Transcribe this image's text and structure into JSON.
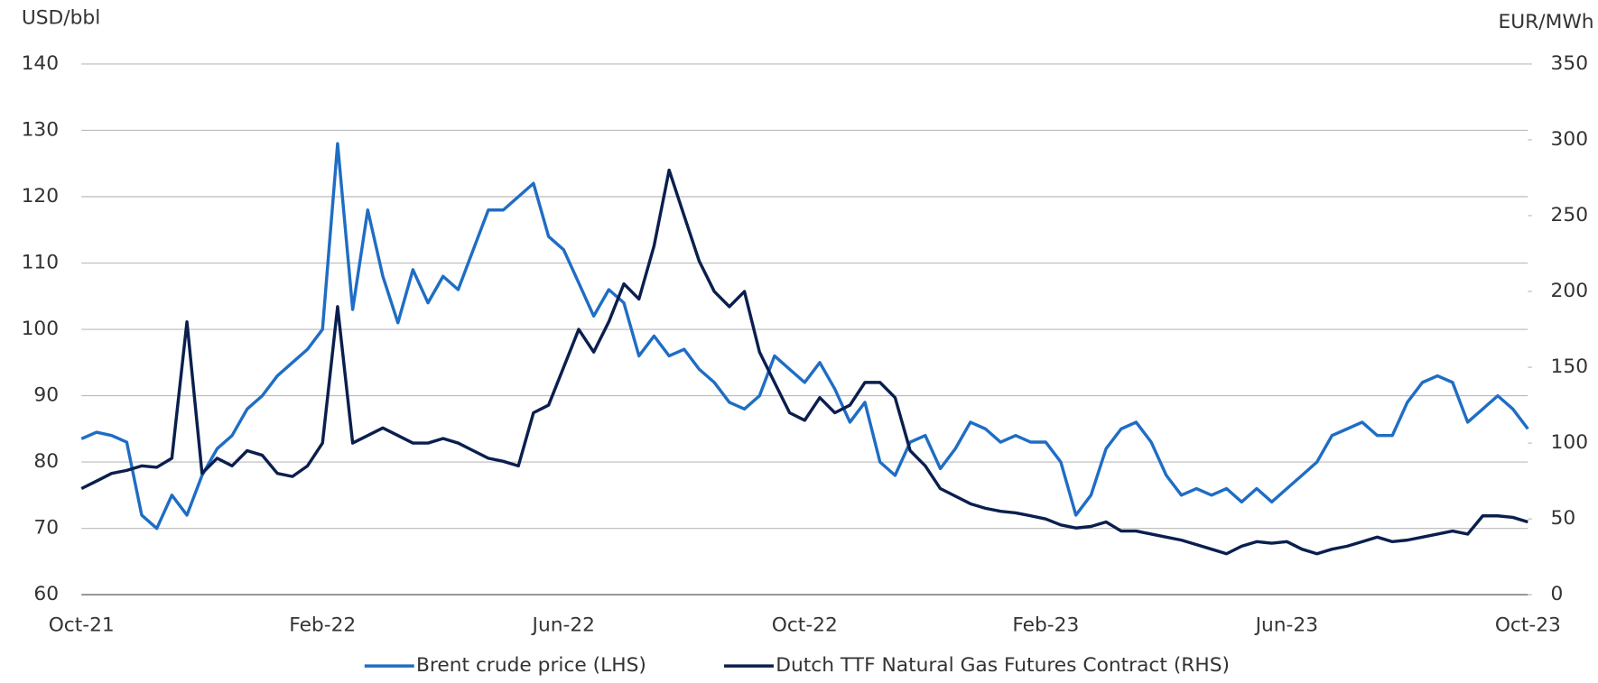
{
  "chart_data": {
    "type": "line",
    "y_label": "USD/bbl",
    "y2_label": "EUR/MWh",
    "categories": [
      "Oct-21",
      null,
      null,
      null,
      null,
      null,
      null,
      null,
      null,
      null,
      null,
      null,
      null,
      null,
      null,
      null,
      "Feb-22",
      null,
      null,
      null,
      null,
      null,
      null,
      null,
      null,
      null,
      null,
      null,
      null,
      null,
      null,
      null,
      "Jun-22",
      null,
      null,
      null,
      null,
      null,
      null,
      null,
      null,
      null,
      null,
      null,
      null,
      null,
      null,
      null,
      "Oct-22",
      null,
      null,
      null,
      null,
      null,
      null,
      null,
      null,
      null,
      null,
      null,
      null,
      null,
      null,
      null,
      "Feb-23",
      null,
      null,
      null,
      null,
      null,
      null,
      null,
      null,
      null,
      null,
      null,
      null,
      null,
      null,
      null,
      "Jun-23",
      null,
      null,
      null,
      null,
      null,
      null,
      null,
      null,
      null,
      null,
      null,
      null,
      null,
      null,
      null,
      "Oct-23"
    ],
    "series": [
      {
        "name": "Brent crude price (LHS)",
        "color": "#1f6dc4",
        "axis": "y",
        "values": [
          83.5,
          84.5,
          84,
          83,
          72,
          70,
          75,
          72,
          78,
          82,
          84,
          88,
          90,
          93,
          95,
          97,
          100,
          128,
          103,
          118,
          108,
          101,
          109,
          104,
          108,
          106,
          112,
          118,
          118,
          120,
          122,
          114,
          112,
          107,
          102,
          106,
          104,
          96,
          99,
          96,
          97,
          94,
          92,
          89,
          88,
          90,
          96,
          94,
          92,
          95,
          91,
          86,
          89,
          80,
          78,
          83,
          84,
          79,
          82,
          86,
          85,
          83,
          84,
          83,
          83,
          80,
          72,
          75,
          82,
          85,
          86,
          83,
          78,
          75,
          76,
          75,
          76,
          74,
          76,
          74,
          76,
          78,
          80,
          84,
          85,
          86,
          84,
          84,
          89,
          92,
          93,
          92,
          86,
          88,
          90,
          88,
          85
        ]
      },
      {
        "name": "Dutch TTF Natural Gas Futures Contract (RHS)",
        "color": "#0a1f4e",
        "axis": "y2",
        "values": [
          70,
          75,
          80,
          82,
          85,
          84,
          90,
          180,
          80,
          90,
          85,
          95,
          92,
          80,
          78,
          85,
          100,
          190,
          100,
          105,
          110,
          105,
          100,
          100,
          103,
          100,
          95,
          90,
          88,
          85,
          120,
          125,
          150,
          175,
          160,
          180,
          205,
          195,
          230,
          280,
          250,
          220,
          200,
          190,
          200,
          160,
          140,
          120,
          115,
          130,
          120,
          125,
          140,
          140,
          130,
          95,
          85,
          70,
          65,
          60,
          57,
          55,
          54,
          52,
          50,
          46,
          44,
          45,
          48,
          42,
          42,
          40,
          38,
          36,
          33,
          30,
          27,
          32,
          35,
          34,
          35,
          30,
          27,
          30,
          32,
          35,
          38,
          35,
          36,
          38,
          40,
          42,
          40,
          52,
          52,
          51,
          48
        ]
      }
    ],
    "ylim": [
      60,
      140
    ],
    "yticks": [
      60,
      70,
      80,
      90,
      100,
      110,
      120,
      130,
      140
    ],
    "y2lim": [
      0,
      350
    ],
    "y2ticks": [
      0,
      50,
      100,
      150,
      200,
      250,
      300,
      350
    ],
    "grid": true,
    "legend": "bottom"
  }
}
